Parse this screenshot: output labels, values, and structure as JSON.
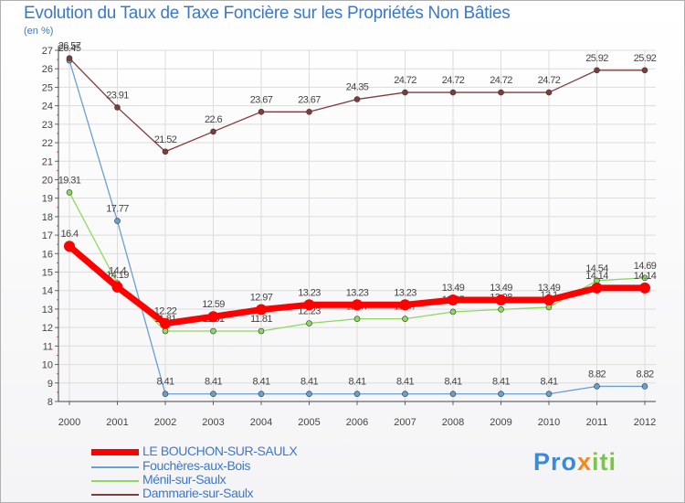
{
  "chart_data": {
    "type": "line",
    "title": "Evolution du Taux de Taxe Foncière sur les Propriétés Non Bâties",
    "ylabel": "(en %)",
    "xlabel": "",
    "x": [
      "2000",
      "2001",
      "2002",
      "2003",
      "2004",
      "2005",
      "2006",
      "2007",
      "2008",
      "2009",
      "2010",
      "2011",
      "2012"
    ],
    "ylim": [
      8,
      27
    ],
    "yticks": [
      "8",
      "9",
      "10",
      "11",
      "12",
      "13",
      "14",
      "15",
      "16",
      "17",
      "18",
      "19",
      "20",
      "21",
      "22",
      "23",
      "24",
      "25",
      "26",
      "27"
    ],
    "series": [
      {
        "name": "LE BOUCHON-SUR-SAULX",
        "color": "#ff0000",
        "values": [
          16.4,
          14.19,
          12.22,
          12.59,
          12.97,
          13.23,
          13.23,
          13.23,
          13.49,
          13.49,
          13.49,
          14.14,
          14.14
        ],
        "labels": [
          "16.4",
          "14.19",
          "12.22",
          "12.59",
          "12.97",
          "13.23",
          "13.23",
          "13.23",
          "13.49",
          "13.49",
          "13.49",
          "14.14",
          "14.14"
        ]
      },
      {
        "name": "Fouchères-aux-Bois",
        "color": "#6a9fd0",
        "values": [
          26.45,
          17.77,
          8.41,
          8.41,
          8.41,
          8.41,
          8.41,
          8.41,
          8.41,
          8.41,
          8.41,
          8.82,
          8.82
        ],
        "labels": [
          "26.45",
          "17.77",
          "8.41",
          "8.41",
          "8.41",
          "8.41",
          "8.41",
          "8.41",
          "8.41",
          "8.41",
          "8.41",
          "8.82",
          "8.82"
        ]
      },
      {
        "name": "Ménil-sur-Saulx",
        "color": "#8fd860",
        "values": [
          19.31,
          14.4,
          11.81,
          11.81,
          11.81,
          12.23,
          12.47,
          12.47,
          12.85,
          12.98,
          13.1,
          14.54,
          14.69
        ],
        "labels": [
          "19.31",
          "14.4",
          "11.81",
          "11.81",
          "11.81",
          "12.23",
          "12.47",
          "12.47",
          "12.85",
          "12.98",
          "13.1",
          "14.54",
          "14.69"
        ]
      },
      {
        "name": "Dammarie-sur-Saulx",
        "color": "#803c3c",
        "values": [
          26.57,
          23.91,
          21.52,
          22.6,
          23.67,
          23.67,
          24.35,
          24.72,
          24.72,
          24.72,
          24.72,
          25.92,
          25.92
        ],
        "labels": [
          "26.57",
          "23.91",
          "21.52",
          "22.6",
          "23.67",
          "23.67",
          "24.35",
          "24.72",
          "24.72",
          "24.72",
          "24.72",
          "25.92",
          "25.92"
        ]
      }
    ]
  },
  "brand": {
    "logo_part1": "Pro",
    "logo_part2": "x",
    "logo_part3": "iti"
  }
}
